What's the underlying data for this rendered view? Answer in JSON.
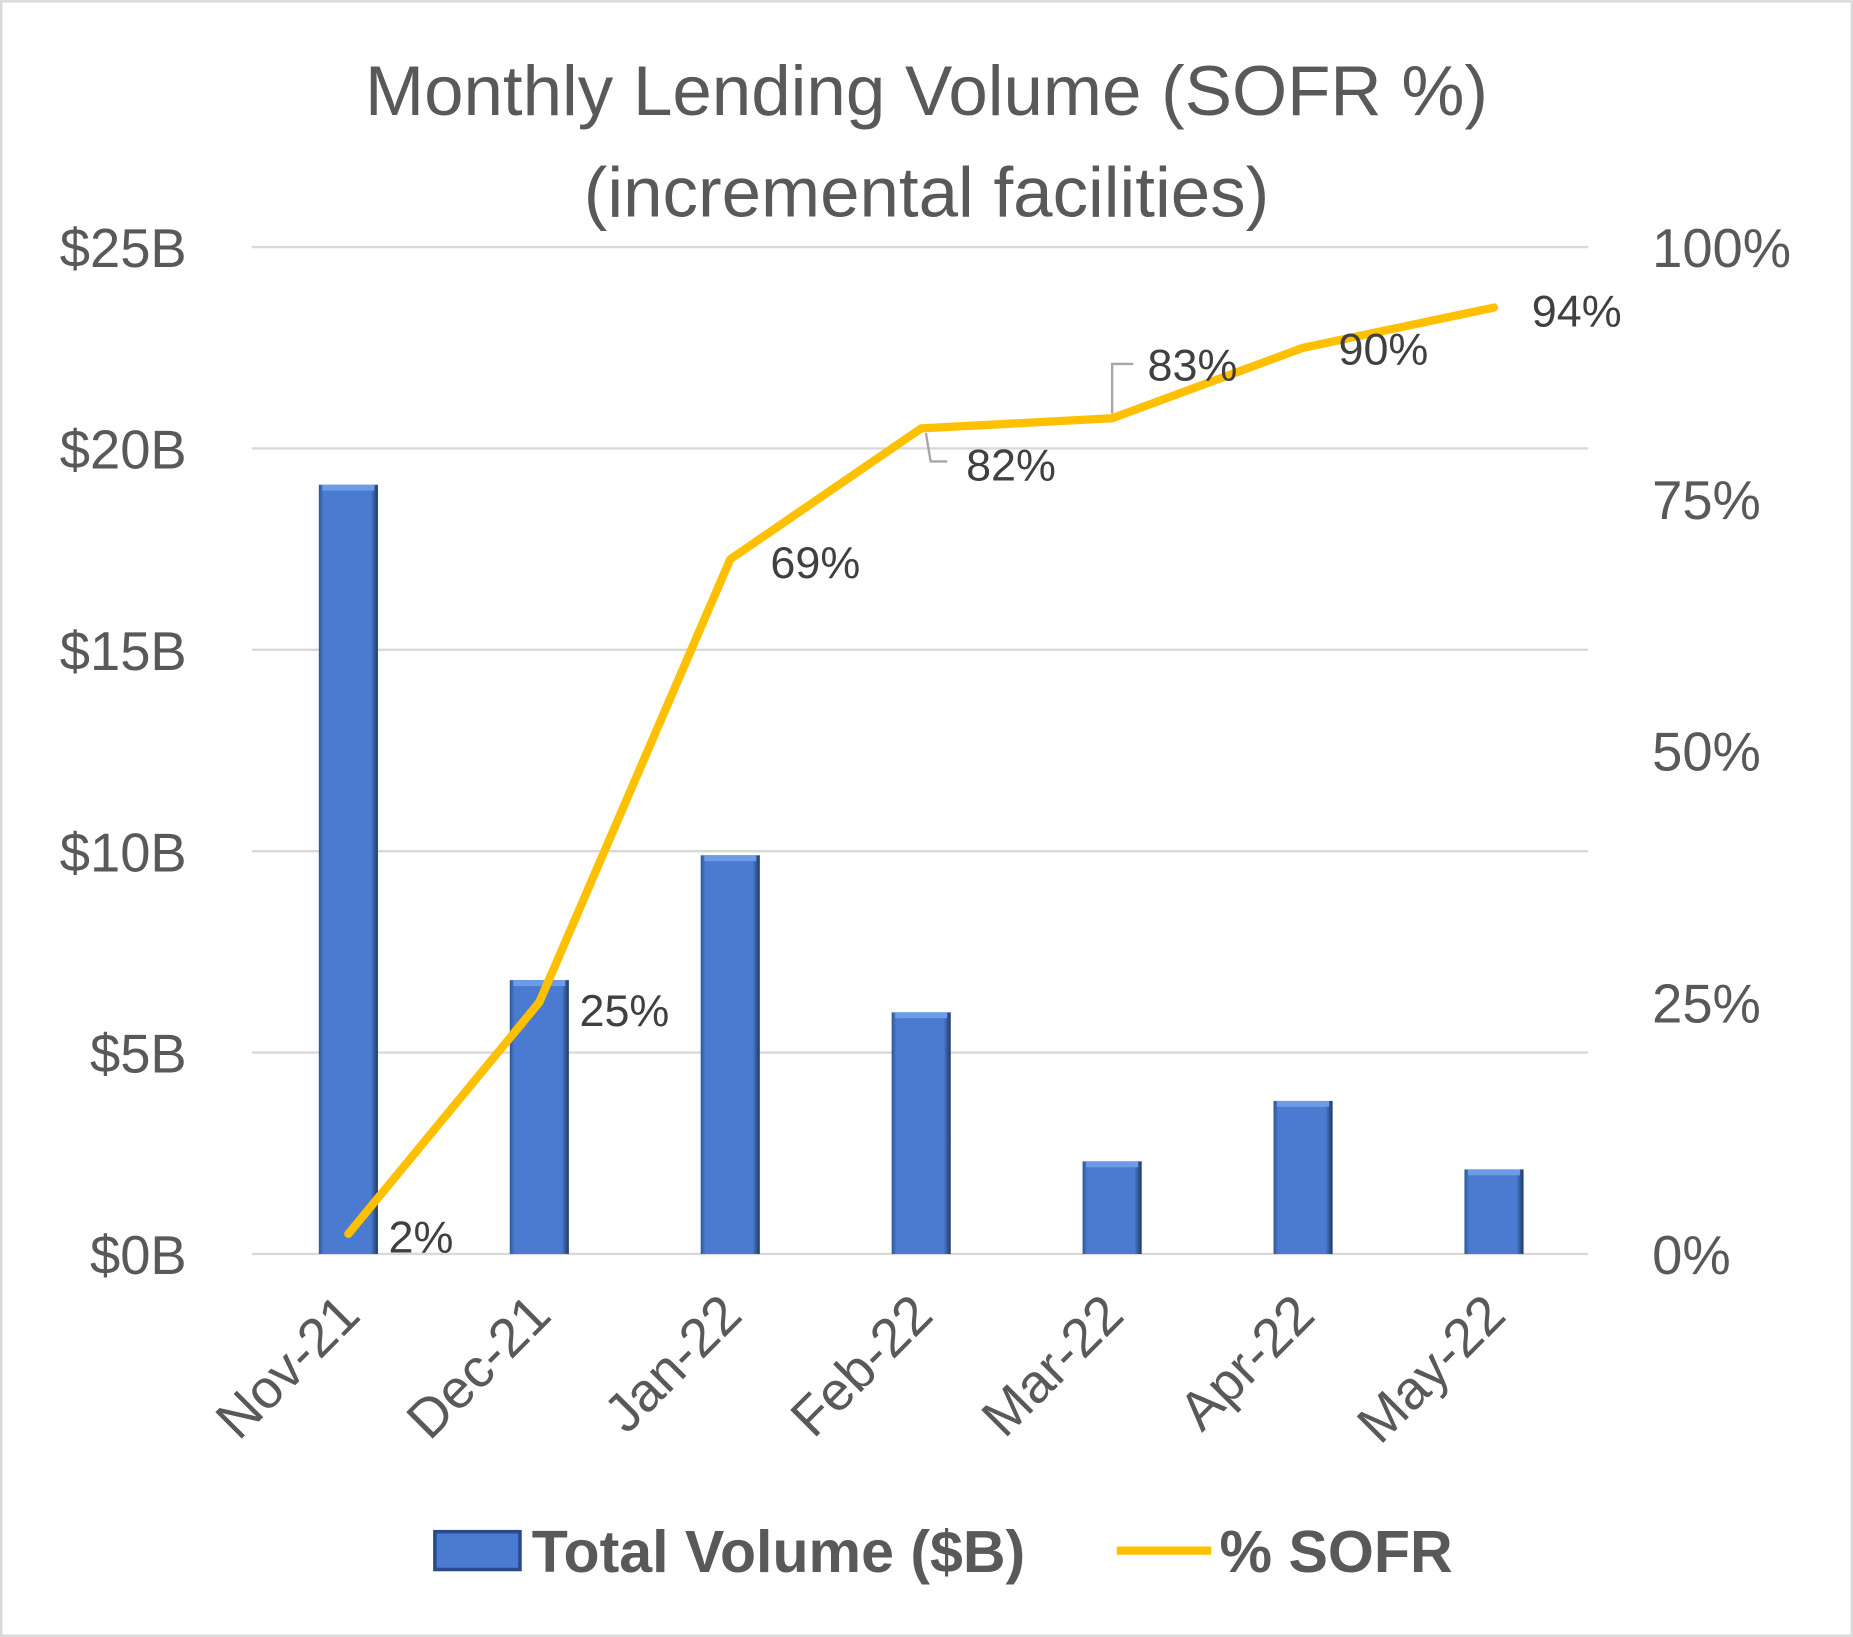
{
  "chart_data": {
    "type": "bar+line",
    "title": [
      "Monthly Lending Volume (SOFR %)",
      "(incremental facilities)"
    ],
    "categories": [
      "Nov-21",
      "Dec-21",
      "Jan-22",
      "Feb-22",
      "Mar-22",
      "Apr-22",
      "May-22"
    ],
    "series": [
      {
        "name": "Total Volume ($B)",
        "type": "bar",
        "axis": "left",
        "color": "#4a7bd0",
        "values": [
          19.1,
          6.8,
          9.9,
          6.0,
          2.3,
          3.8,
          2.1
        ]
      },
      {
        "name": "% SOFR",
        "type": "line",
        "axis": "right",
        "color": "#ffc000",
        "values": [
          2,
          25,
          69,
          82,
          83,
          90,
          94
        ],
        "data_labels": [
          "2%",
          "25%",
          "69%",
          "82%",
          "83%",
          "90%",
          "94%"
        ]
      }
    ],
    "left_axis": {
      "range": [
        0,
        25
      ],
      "ticks": [
        "$0B",
        "$5B",
        "$10B",
        "$15B",
        "$20B",
        "$25B"
      ]
    },
    "right_axis": {
      "range": [
        0,
        100
      ],
      "ticks": [
        "0%",
        "25%",
        "50%",
        "75%",
        "100%"
      ]
    },
    "grid": true,
    "legend_position": "bottom"
  }
}
